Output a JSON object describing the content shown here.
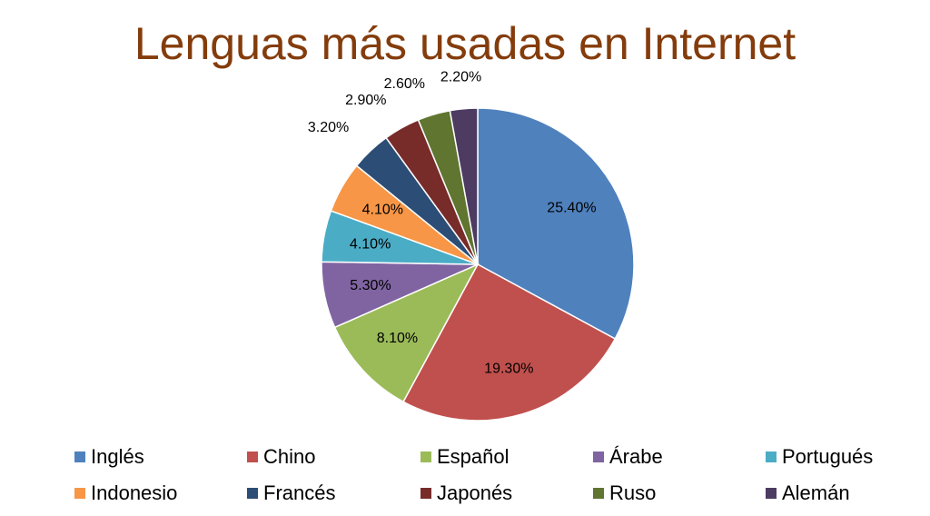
{
  "chart_data": {
    "type": "pie",
    "title": "Lenguas más usadas en Internet",
    "categories": [
      "Inglés",
      "Chino",
      "Español",
      "Árabe",
      "Portugués",
      "Indonesio",
      "Francés",
      "Japonés",
      "Ruso",
      "Alemán"
    ],
    "values": [
      25.4,
      19.3,
      8.1,
      5.3,
      4.1,
      4.1,
      3.2,
      2.9,
      2.6,
      2.2
    ],
    "value_labels": [
      "25.40%",
      "19.30%",
      "8.10%",
      "5.30%",
      "4.10%",
      "4.10%",
      "3.20%",
      "2.90%",
      "2.60%",
      "2.20%"
    ],
    "colors": [
      "#4f81bd",
      "#c0504d",
      "#9bbb59",
      "#8064a2",
      "#4bacc6",
      "#f79646",
      "#2c4d75",
      "#772c2a",
      "#5f7530",
      "#4d3b62"
    ],
    "legend": "bottom"
  }
}
